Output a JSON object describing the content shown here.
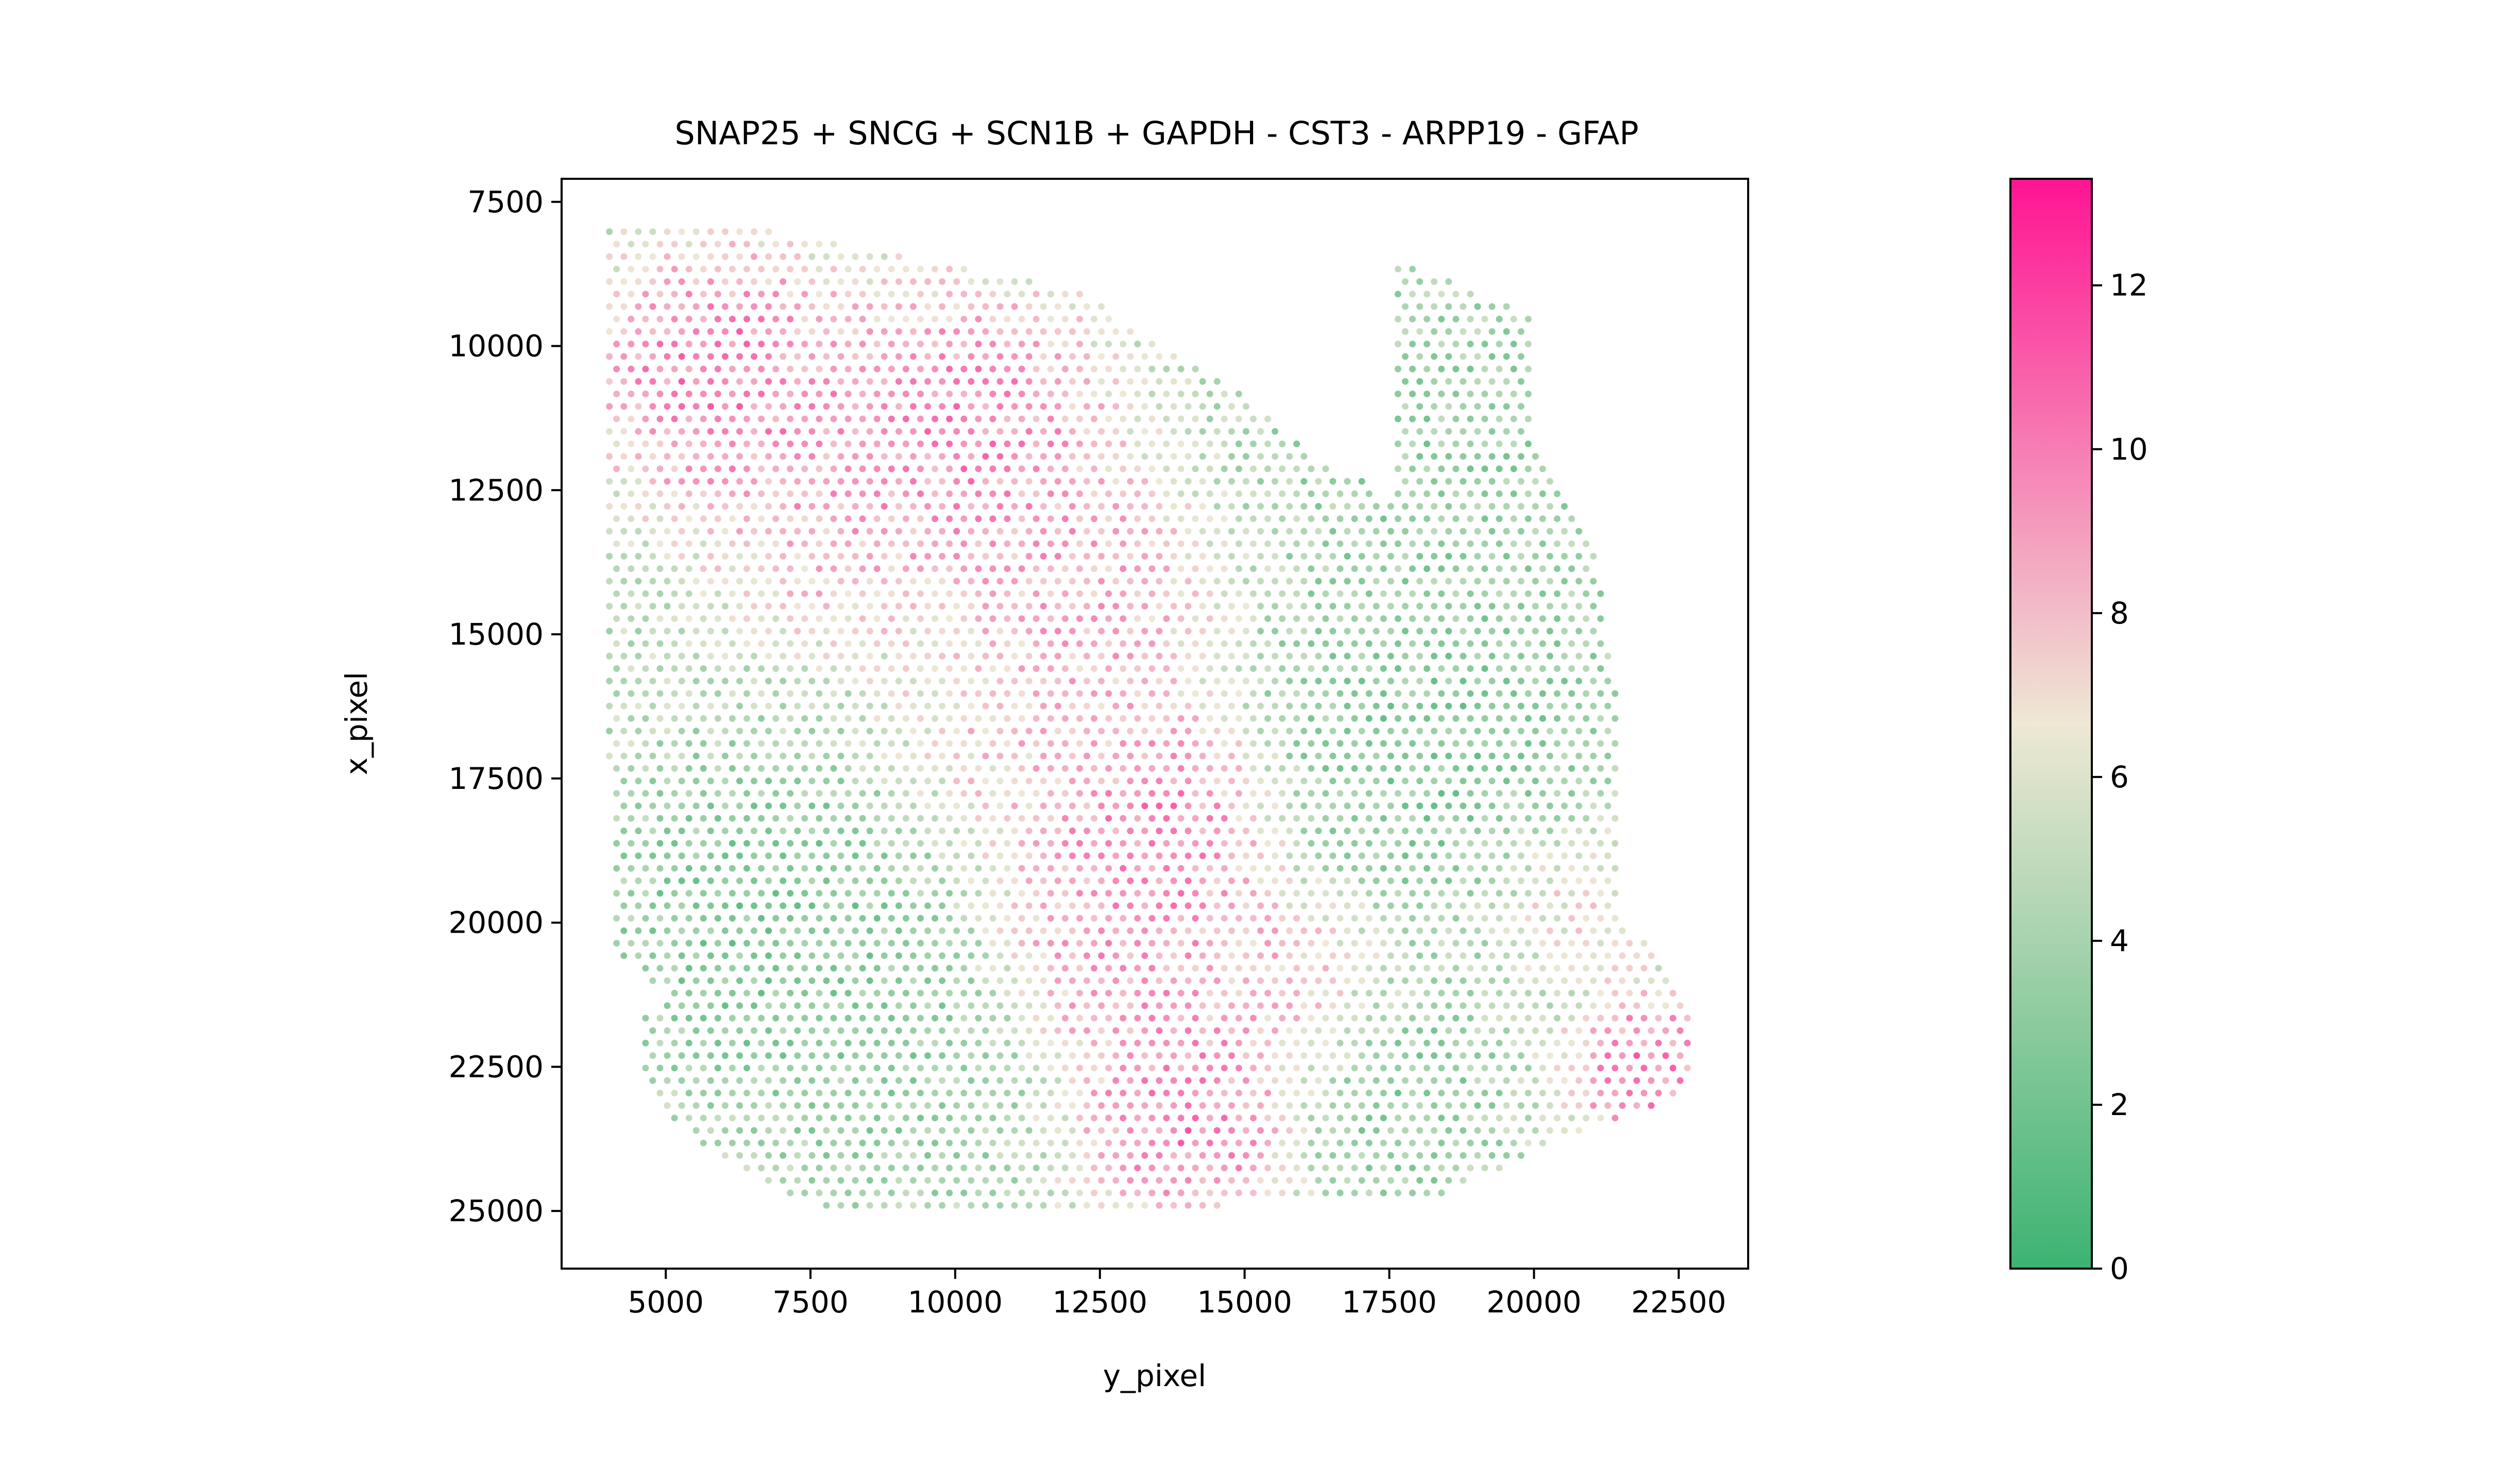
{
  "chart_data": {
    "type": "scatter",
    "title": "SNAP25 + SNCG + SCN1B + GAPDH - CST3 - ARPP19 - GFAP",
    "xlabel": "y_pixel",
    "ylabel": "x_pixel",
    "xlim": [
      3200,
      23700
    ],
    "ylim": [
      26000,
      7100
    ],
    "y_inverted": true,
    "x_ticks": [
      "5000",
      "7500",
      "10000",
      "12500",
      "15000",
      "17500",
      "20000",
      "22500"
    ],
    "y_ticks": [
      "7500",
      "10000",
      "12500",
      "15000",
      "17500",
      "20000",
      "22500",
      "25000"
    ],
    "colorbar": {
      "min": 0,
      "max": 13.3,
      "ticks": [
        "0",
        "2",
        "4",
        "6",
        "8",
        "10",
        "12"
      ],
      "colors": [
        "#3cb371",
        "#eee8d5",
        "#ff1493"
      ]
    },
    "grid": false,
    "legend": "none",
    "spot_spacing": 250,
    "tissue_outline": [
      [
        4000,
        7900
      ],
      [
        5900,
        7800
      ],
      [
        9500,
        8500
      ],
      [
        12000,
        9000
      ],
      [
        14500,
        10500
      ],
      [
        16500,
        12100
      ],
      [
        17100,
        12300
      ],
      [
        17300,
        12800
      ],
      [
        17600,
        12500
      ],
      [
        17600,
        8500
      ],
      [
        19900,
        9400
      ],
      [
        20000,
        11500
      ],
      [
        21000,
        13300
      ],
      [
        21500,
        16400
      ],
      [
        21500,
        19800
      ],
      [
        22700,
        21300
      ],
      [
        22700,
        22900
      ],
      [
        22200,
        23200
      ],
      [
        20300,
        23800
      ],
      [
        19200,
        24400
      ],
      [
        18200,
        24800
      ],
      [
        16000,
        24800
      ],
      [
        14600,
        24900
      ],
      [
        13000,
        25000
      ],
      [
        10000,
        25100
      ],
      [
        8400,
        25100
      ],
      [
        7300,
        24800
      ],
      [
        6100,
        24200
      ],
      [
        4900,
        23300
      ],
      [
        4600,
        22700
      ],
      [
        4600,
        21600
      ],
      [
        5000,
        21300
      ],
      [
        4100,
        20500
      ],
      [
        4000,
        16000
      ]
    ],
    "hotspots": [
      {
        "x": 5900,
        "y": 10500,
        "value": 11.5,
        "spread": 1700
      },
      {
        "x": 10200,
        "y": 11400,
        "value": 11.0,
        "spread": 1900
      },
      {
        "x": 8000,
        "y": 12600,
        "value": 9.5,
        "spread": 1800
      },
      {
        "x": 12200,
        "y": 14200,
        "value": 9.5,
        "spread": 1800
      },
      {
        "x": 13600,
        "y": 18300,
        "value": 11.5,
        "spread": 1500
      },
      {
        "x": 12700,
        "y": 20500,
        "value": 10.0,
        "spread": 1600
      },
      {
        "x": 14000,
        "y": 23400,
        "value": 11.5,
        "spread": 1500
      },
      {
        "x": 15500,
        "y": 21000,
        "value": 9.0,
        "spread": 1500
      },
      {
        "x": 21900,
        "y": 22500,
        "value": 11.5,
        "spread": 1000
      },
      {
        "x": 20700,
        "y": 19500,
        "value": 8.0,
        "spread": 1100
      },
      {
        "x": 11500,
        "y": 16500,
        "value": 8.5,
        "spread": 1800
      }
    ],
    "coldspots": [
      {
        "x": 6800,
        "y": 20000,
        "value": 2.0,
        "spread": 2200
      },
      {
        "x": 18300,
        "y": 17000,
        "value": 2.2,
        "spread": 2500
      },
      {
        "x": 17500,
        "y": 23000,
        "value": 2.5,
        "spread": 1500
      },
      {
        "x": 18500,
        "y": 12000,
        "value": 3.0,
        "spread": 2500
      },
      {
        "x": 9000,
        "y": 22500,
        "value": 3.0,
        "spread": 2000
      }
    ],
    "background_value": 5.0
  }
}
